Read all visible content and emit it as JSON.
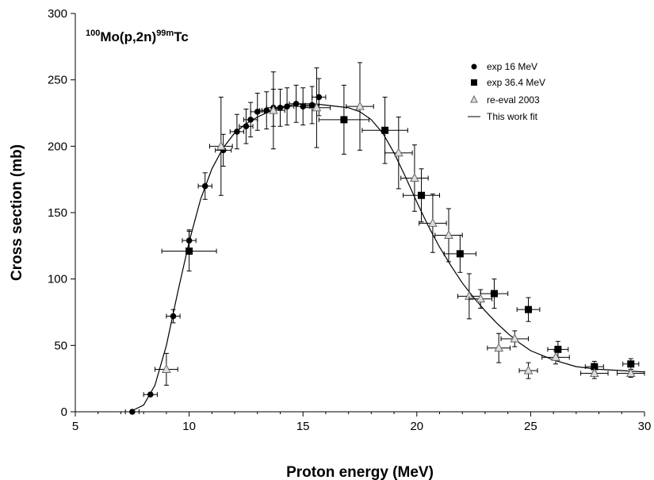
{
  "chart_data": {
    "type": "scatter",
    "annotation": {
      "mass1": "100",
      "part1": "Mo(p,2n)",
      "mass2": "99m",
      "part2": "Tc"
    },
    "xlabel": "Proton energy (MeV)",
    "ylabel": "Cross section (mb)",
    "xlim": [
      5,
      30
    ],
    "ylim": [
      0,
      300
    ],
    "x_ticks": [
      5,
      10,
      15,
      20,
      25,
      30
    ],
    "y_ticks": [
      0,
      50,
      100,
      150,
      200,
      250,
      300
    ],
    "grid": false,
    "legend_position": "top-right",
    "series": [
      {
        "name": "exp 16 MeV",
        "marker": "circle",
        "color": "#000000",
        "points": [
          {
            "x": 7.5,
            "y": 0,
            "xerr": 0.3,
            "yerr": 0
          },
          {
            "x": 8.3,
            "y": 13,
            "xerr": 0.3,
            "yerr": 1
          },
          {
            "x": 9.3,
            "y": 72,
            "xerr": 0.3,
            "yerr": 5
          },
          {
            "x": 10.0,
            "y": 129,
            "xerr": 0.3,
            "yerr": 8
          },
          {
            "x": 10.7,
            "y": 170,
            "xerr": 0.3,
            "yerr": 10
          },
          {
            "x": 11.5,
            "y": 197,
            "xerr": 0.35,
            "yerr": 12
          },
          {
            "x": 12.1,
            "y": 211,
            "xerr": 0.3,
            "yerr": 13
          },
          {
            "x": 12.5,
            "y": 215,
            "xerr": 0.3,
            "yerr": 13
          },
          {
            "x": 12.7,
            "y": 220,
            "xerr": 0.3,
            "yerr": 13
          },
          {
            "x": 13.0,
            "y": 226,
            "xerr": 0.3,
            "yerr": 14
          },
          {
            "x": 13.4,
            "y": 227,
            "xerr": 0.3,
            "yerr": 14
          },
          {
            "x": 13.7,
            "y": 229,
            "xerr": 0.3,
            "yerr": 14
          },
          {
            "x": 14.0,
            "y": 229,
            "xerr": 0.3,
            "yerr": 14
          },
          {
            "x": 14.3,
            "y": 230,
            "xerr": 0.3,
            "yerr": 14
          },
          {
            "x": 14.7,
            "y": 232,
            "xerr": 0.3,
            "yerr": 14
          },
          {
            "x": 15.0,
            "y": 230,
            "xerr": 0.3,
            "yerr": 14
          },
          {
            "x": 15.4,
            "y": 231,
            "xerr": 0.3,
            "yerr": 14
          },
          {
            "x": 15.7,
            "y": 237,
            "xerr": 0.3,
            "yerr": 14
          }
        ]
      },
      {
        "name": "exp 36.4 MeV",
        "marker": "square",
        "color": "#000000",
        "points": [
          {
            "x": 10.0,
            "y": 121,
            "xerr": 1.2,
            "yerr": 15
          },
          {
            "x": 16.8,
            "y": 220,
            "xerr": 1.1,
            "yerr": 26
          },
          {
            "x": 18.6,
            "y": 212,
            "xerr": 1.0,
            "yerr": 25
          },
          {
            "x": 20.2,
            "y": 163,
            "xerr": 0.8,
            "yerr": 20
          },
          {
            "x": 21.9,
            "y": 119,
            "xerr": 0.7,
            "yerr": 14
          },
          {
            "x": 23.4,
            "y": 89,
            "xerr": 0.6,
            "yerr": 11
          },
          {
            "x": 24.9,
            "y": 77,
            "xerr": 0.5,
            "yerr": 9
          },
          {
            "x": 26.2,
            "y": 47,
            "xerr": 0.45,
            "yerr": 6
          },
          {
            "x": 27.8,
            "y": 34,
            "xerr": 0.4,
            "yerr": 4
          },
          {
            "x": 29.4,
            "y": 36,
            "xerr": 0.35,
            "yerr": 4
          }
        ]
      },
      {
        "name": "re-eval 2003",
        "marker": "triangle",
        "color": "#bbbbbb",
        "points": [
          {
            "x": 9.0,
            "y": 32,
            "xerr": 0.5,
            "yerr": 12
          },
          {
            "x": 11.4,
            "y": 200,
            "xerr": 0.5,
            "yerr": 37
          },
          {
            "x": 13.7,
            "y": 227,
            "xerr": 0.5,
            "yerr": 29
          },
          {
            "x": 15.6,
            "y": 229,
            "xerr": 0.6,
            "yerr": 30
          },
          {
            "x": 17.5,
            "y": 230,
            "xerr": 0.6,
            "yerr": 33
          },
          {
            "x": 19.2,
            "y": 195,
            "xerr": 0.6,
            "yerr": 27
          },
          {
            "x": 19.9,
            "y": 176,
            "xerr": 0.6,
            "yerr": 25
          },
          {
            "x": 20.7,
            "y": 142,
            "xerr": 0.6,
            "yerr": 22
          },
          {
            "x": 21.4,
            "y": 133,
            "xerr": 0.6,
            "yerr": 20
          },
          {
            "x": 22.3,
            "y": 87,
            "xerr": 0.5,
            "yerr": 17
          },
          {
            "x": 22.8,
            "y": 85,
            "xerr": 0.5,
            "yerr": 7
          },
          {
            "x": 23.6,
            "y": 48,
            "xerr": 0.5,
            "yerr": 11
          },
          {
            "x": 24.3,
            "y": 55,
            "xerr": 0.6,
            "yerr": 6
          },
          {
            "x": 24.9,
            "y": 31,
            "xerr": 0.4,
            "yerr": 6
          },
          {
            "x": 26.1,
            "y": 41,
            "xerr": 0.6,
            "yerr": 5
          },
          {
            "x": 27.8,
            "y": 29,
            "xerr": 0.6,
            "yerr": 4
          },
          {
            "x": 29.4,
            "y": 29,
            "xerr": 0.6,
            "yerr": 3
          }
        ]
      },
      {
        "name": "This work fit",
        "marker": "line",
        "color": "#000000",
        "points": [
          {
            "x": 7.4,
            "y": 0
          },
          {
            "x": 8.0,
            "y": 5
          },
          {
            "x": 8.5,
            "y": 20
          },
          {
            "x": 9.0,
            "y": 50
          },
          {
            "x": 9.5,
            "y": 90
          },
          {
            "x": 10.0,
            "y": 128
          },
          {
            "x": 10.5,
            "y": 160
          },
          {
            "x": 11.0,
            "y": 183
          },
          {
            "x": 11.5,
            "y": 199
          },
          {
            "x": 12.0,
            "y": 210
          },
          {
            "x": 12.5,
            "y": 217
          },
          {
            "x": 13.0,
            "y": 222
          },
          {
            "x": 13.5,
            "y": 226
          },
          {
            "x": 14.0,
            "y": 229
          },
          {
            "x": 14.5,
            "y": 231
          },
          {
            "x": 15.0,
            "y": 232
          },
          {
            "x": 15.5,
            "y": 232
          },
          {
            "x": 16.0,
            "y": 231
          },
          {
            "x": 16.5,
            "y": 230
          },
          {
            "x": 17.0,
            "y": 229
          },
          {
            "x": 17.5,
            "y": 226
          },
          {
            "x": 18.0,
            "y": 220
          },
          {
            "x": 18.5,
            "y": 210
          },
          {
            "x": 19.0,
            "y": 195
          },
          {
            "x": 19.5,
            "y": 177
          },
          {
            "x": 20.0,
            "y": 158
          },
          {
            "x": 20.5,
            "y": 140
          },
          {
            "x": 21.0,
            "y": 124
          },
          {
            "x": 21.5,
            "y": 110
          },
          {
            "x": 22.0,
            "y": 97
          },
          {
            "x": 22.5,
            "y": 86
          },
          {
            "x": 23.0,
            "y": 76
          },
          {
            "x": 23.5,
            "y": 67
          },
          {
            "x": 24.0,
            "y": 59
          },
          {
            "x": 24.5,
            "y": 52
          },
          {
            "x": 25.0,
            "y": 46
          },
          {
            "x": 26.0,
            "y": 39
          },
          {
            "x": 27.0,
            "y": 34
          },
          {
            "x": 28.0,
            "y": 32
          },
          {
            "x": 29.0,
            "y": 31
          },
          {
            "x": 30.0,
            "y": 30
          }
        ]
      }
    ]
  }
}
